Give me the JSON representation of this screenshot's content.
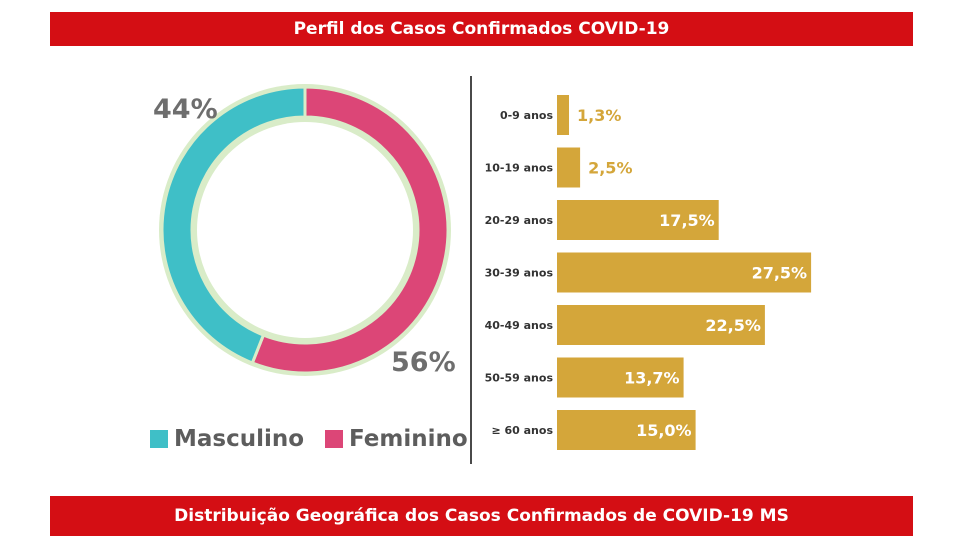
{
  "header": {
    "title": "Perfil dos Casos Confirmados COVID-19"
  },
  "footer": {
    "title": "Distribuição Geográfica dos Casos Confirmados de COVID-19 MS"
  },
  "colors": {
    "banner": "#d40e14",
    "masculino": "#3fbfc7",
    "feminino": "#dc4677",
    "ring_border": "#d9ecc8",
    "bars": "#d4a63a"
  },
  "chart_data": [
    {
      "type": "pie",
      "variant": "donut",
      "labels": [
        "Masculino",
        "Feminino"
      ],
      "values": [
        44,
        56
      ],
      "value_labels": [
        "44%",
        "56%"
      ],
      "legend": "bottom"
    },
    {
      "type": "bar",
      "orientation": "horizontal",
      "categories": [
        "0-9 anos",
        "10-19 anos",
        "20-29 anos",
        "30-39 anos",
        "40-49 anos",
        "50-59 anos",
        "≥ 60 anos"
      ],
      "values": [
        1.3,
        2.5,
        17.5,
        27.5,
        22.5,
        13.7,
        15.0
      ],
      "value_labels": [
        "1,3%",
        "2,5%",
        "17,5%",
        "27,5%",
        "22,5%",
        "13,7%",
        "15,0%"
      ],
      "unit": "%"
    }
  ]
}
